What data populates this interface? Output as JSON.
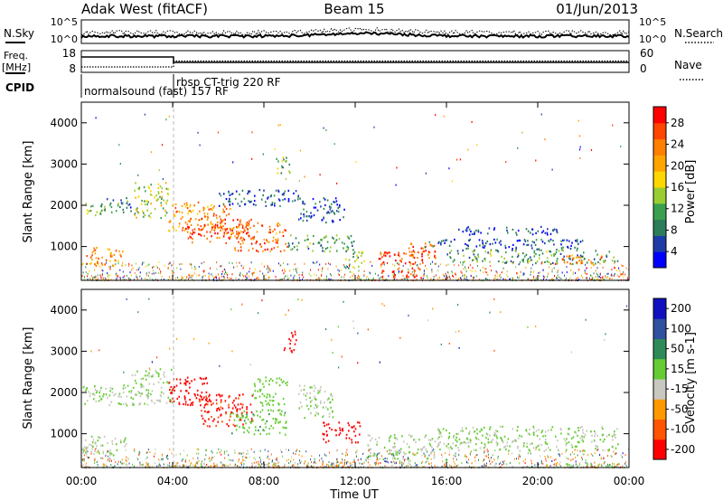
{
  "header": {
    "site": "Adak West (fitACF)",
    "beam": "Beam 15",
    "date": "01/Jun/2013"
  },
  "strip": {
    "nsky_label": "N.Sky",
    "nsky_ticks": [
      "10^5",
      "10^0"
    ],
    "nsearch_label": "N.Search",
    "freq_label_1": "Freq.",
    "freq_label_2": "[MHz]",
    "freq_ticks": [
      "18",
      "8"
    ],
    "nave_ticks": [
      "60",
      "0"
    ],
    "nave_label": "Nave",
    "cpid_label": "CPID",
    "cpid_1": "normalsound (fast) 157 RF",
    "cpid_2": "rbsp CT-trig 220 RF"
  },
  "axes": {
    "ylabel": "Slant Range [km]",
    "xlabel": "Time UT",
    "yticks": [
      "1000",
      "2000",
      "3000",
      "4000"
    ],
    "xticks": [
      "00:00",
      "04:00",
      "08:00",
      "12:00",
      "16:00",
      "20:00",
      "00:00"
    ]
  },
  "colorbars": {
    "power": {
      "label": "Power [dB]",
      "ticks": [
        "4",
        "8",
        "12",
        "16",
        "20",
        "24",
        "28"
      ],
      "colors": [
        "#0000ff",
        "#1e3ca8",
        "#2e7d5a",
        "#3aa050",
        "#9acd32",
        "#ffd700",
        "#ffa500",
        "#ff7f00",
        "#ff4500",
        "#ff0000"
      ]
    },
    "velocity": {
      "label": "Velocity [m s-1]",
      "ticks": [
        "200",
        "100",
        "50",
        "15",
        "-15",
        "-50",
        "-100",
        "-200"
      ],
      "colors": [
        "#1010c0",
        "#3050a0",
        "#2e8b57",
        "#66cc33",
        "#c8c8c0",
        "#ff9900",
        "#ff5500",
        "#ff0000"
      ]
    }
  },
  "chart_data": [
    {
      "type": "heatmap",
      "name": "Power",
      "quantity": "Power [dB]",
      "x_unit": "hours UT",
      "xlim": [
        0,
        24
      ],
      "ylim": [
        180,
        4500
      ],
      "clim": [
        3,
        30
      ],
      "blobs": [
        {
          "t0": 0.0,
          "t1": 1.0,
          "r0": 1750,
          "r1": 2100,
          "v": 14
        },
        {
          "t0": 1.0,
          "t1": 2.2,
          "r0": 1800,
          "r1": 2200,
          "v": 10
        },
        {
          "t0": 0.0,
          "t1": 1.8,
          "r0": 550,
          "r1": 1000,
          "v": 22
        },
        {
          "t0": 2.3,
          "t1": 3.8,
          "r0": 1700,
          "r1": 2600,
          "v": 16
        },
        {
          "t0": 3.8,
          "t1": 6.5,
          "r0": 1400,
          "r1": 2100,
          "v": 22
        },
        {
          "t0": 4.5,
          "t1": 7.5,
          "r0": 1100,
          "r1": 1700,
          "v": 26
        },
        {
          "t0": 6.5,
          "t1": 9.0,
          "r0": 900,
          "r1": 1600,
          "v": 24
        },
        {
          "t0": 6.0,
          "t1": 9.5,
          "r0": 2000,
          "r1": 2400,
          "v": 8
        },
        {
          "t0": 8.5,
          "t1": 9.2,
          "r0": 2800,
          "r1": 3200,
          "v": 14
        },
        {
          "t0": 9.0,
          "t1": 12.0,
          "r0": 900,
          "r1": 1300,
          "v": 12
        },
        {
          "t0": 9.5,
          "t1": 11.5,
          "r0": 1600,
          "r1": 2200,
          "v": 8
        },
        {
          "t0": 11.5,
          "t1": 12.5,
          "r0": 500,
          "r1": 900,
          "v": 14
        },
        {
          "t0": 13.0,
          "t1": 15.0,
          "r0": 250,
          "r1": 900,
          "v": 27
        },
        {
          "t0": 14.0,
          "t1": 15.5,
          "r0": 700,
          "r1": 1100,
          "v": 24
        },
        {
          "t0": 15.0,
          "t1": 22.0,
          "r0": 950,
          "r1": 1200,
          "v": 8
        },
        {
          "t0": 16.0,
          "t1": 23.5,
          "r0": 600,
          "r1": 950,
          "v": 12
        },
        {
          "t0": 21.0,
          "t1": 23.0,
          "r0": 550,
          "r1": 800,
          "v": 22
        },
        {
          "t0": 16.5,
          "t1": 21.0,
          "r0": 1300,
          "r1": 1500,
          "v": 6
        }
      ]
    },
    {
      "type": "heatmap",
      "name": "Velocity",
      "quantity": "Velocity [m s-1]",
      "x_unit": "hours UT",
      "xlim": [
        0,
        24
      ],
      "ylim": [
        180,
        4500
      ],
      "clim": [
        -250,
        250
      ],
      "blobs": [
        {
          "t0": 0.0,
          "t1": 2.2,
          "r0": 1700,
          "r1": 2200,
          "v": 0
        },
        {
          "t0": 0.0,
          "t1": 2.0,
          "r0": 500,
          "r1": 1000,
          "v": 0
        },
        {
          "t0": 2.2,
          "t1": 4.0,
          "r0": 1700,
          "r1": 2600,
          "v": 0
        },
        {
          "t0": 3.8,
          "t1": 5.5,
          "r0": 1700,
          "r1": 2400,
          "v": -220
        },
        {
          "t0": 5.0,
          "t1": 7.5,
          "r0": 1200,
          "r1": 2000,
          "v": -200
        },
        {
          "t0": 6.5,
          "t1": 9.0,
          "r0": 1000,
          "r1": 1600,
          "v": 40
        },
        {
          "t0": 7.5,
          "t1": 9.0,
          "r0": 1700,
          "r1": 2400,
          "v": 30
        },
        {
          "t0": 8.8,
          "t1": 9.4,
          "r0": 3000,
          "r1": 3500,
          "v": -220
        },
        {
          "t0": 9.5,
          "t1": 11.0,
          "r0": 1400,
          "r1": 2200,
          "v": 0
        },
        {
          "t0": 10.5,
          "t1": 12.2,
          "r0": 800,
          "r1": 1300,
          "v": -230
        },
        {
          "t0": 12.5,
          "t1": 15.5,
          "r0": 400,
          "r1": 1000,
          "v": 0
        },
        {
          "t0": 15.5,
          "t1": 23.5,
          "r0": 600,
          "r1": 1200,
          "v": 0
        },
        {
          "t0": 4.0,
          "t1": 12.0,
          "r0": 200,
          "r1": 320,
          "v": -60
        },
        {
          "t0": 21.0,
          "t1": 23.5,
          "r0": 200,
          "r1": 300,
          "v": 40
        }
      ]
    }
  ]
}
